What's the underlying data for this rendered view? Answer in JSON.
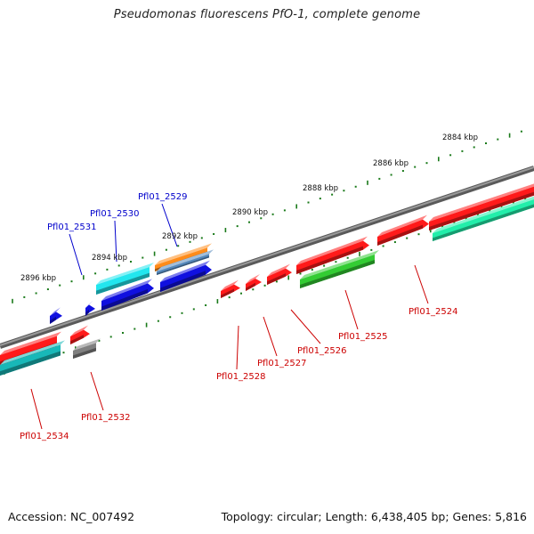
{
  "title": "Pseudomonas fluorescens PfO-1, complete genome",
  "footer": {
    "accession": "Accession: NC_007492",
    "summary": "Topology: circular; Length: 6,438,405 bp; Genes: 5,816"
  },
  "scale": {
    "unit": "kbp",
    "labels": [
      "2884 kbp",
      "2886 kbp",
      "2888 kbp",
      "2890 kbp",
      "2892 kbp",
      "2894 kbp",
      "2896 kbp"
    ]
  },
  "genes": [
    {
      "id": "Pfl01_2524",
      "color": "#cc0000"
    },
    {
      "id": "Pfl01_2525",
      "color": "#cc0000"
    },
    {
      "id": "Pfl01_2526",
      "color": "#cc0000"
    },
    {
      "id": "Pfl01_2527",
      "color": "#cc0000"
    },
    {
      "id": "Pfl01_2528",
      "color": "#cc0000"
    },
    {
      "id": "Pfl01_2529",
      "color": "#0000cc"
    },
    {
      "id": "Pfl01_2530",
      "color": "#0000cc"
    },
    {
      "id": "Pfl01_2531",
      "color": "#0000cc"
    },
    {
      "id": "Pfl01_2532",
      "color": "#cc0000"
    },
    {
      "id": "Pfl01_2534",
      "color": "#cc0000"
    }
  ],
  "colors": {
    "backbone": "#777777",
    "tick": "#1a7a1a",
    "red": "#ff1a1a",
    "blue": "#1010e0",
    "cyan": "#22e6ee",
    "teal": "#18b8b8",
    "green": "#33cc33",
    "mint": "#22eeaa",
    "orange": "#ff8c1a",
    "steel": "#5588bb",
    "gray": "#808080"
  }
}
